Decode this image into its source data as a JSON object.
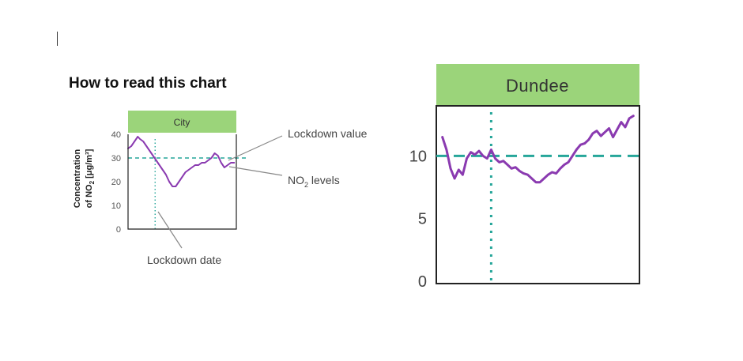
{
  "document": {
    "guide_title": "How to read this chart"
  },
  "guide": {
    "panel_title": "City",
    "y_axis_label_line1": "Concentration",
    "y_axis_label_line2_prefix": "of NO",
    "y_axis_label_line2_sub": "2",
    "y_axis_label_line2_suffix": " [μg/m³]",
    "callouts": {
      "lockdown_value": "Lockdown value",
      "no2_levels_prefix": "NO",
      "no2_levels_sub": "2",
      "no2_levels_suffix": " levels",
      "lockdown_date": "Lockdown date"
    }
  },
  "colors": {
    "header_green": "#9bd47a",
    "series_purple": "#8a3ab0",
    "reference_teal": "#26a69a",
    "axis": "#222222",
    "callout_line": "#888888"
  },
  "chart_data": [
    {
      "type": "line",
      "title": "City",
      "ylabel": "Concentration of NO2 [μg/m³]",
      "ylim": [
        0,
        40
      ],
      "yticks": [
        0,
        10,
        20,
        30,
        40
      ],
      "xlim": [
        0,
        100
      ],
      "grid": false,
      "lockdown_value": 30,
      "lockdown_x": 25,
      "series": [
        {
          "name": "NO2 levels",
          "x": [
            0,
            3,
            6,
            9,
            11,
            14,
            17,
            20,
            23,
            26,
            29,
            32,
            35,
            38,
            41,
            44,
            47,
            50,
            53,
            56,
            59,
            62,
            65,
            68,
            71,
            74,
            77,
            80,
            83,
            86,
            89,
            92,
            95,
            98
          ],
          "y": [
            34,
            35,
            37,
            39,
            38,
            37,
            35,
            33,
            31,
            29,
            27,
            25,
            23,
            20,
            18,
            18,
            20,
            22,
            24,
            25,
            26,
            27,
            27,
            28,
            28,
            29,
            30,
            32,
            31,
            28,
            26,
            27,
            28,
            28
          ]
        }
      ]
    },
    {
      "type": "line",
      "title": "Dundee",
      "ylim": [
        0,
        14
      ],
      "yticks": [
        0,
        5,
        10
      ],
      "xlim": [
        0,
        100
      ],
      "grid": false,
      "lockdown_value": 10,
      "lockdown_x": 27,
      "series": [
        {
          "name": "",
          "x": [
            3,
            5,
            7,
            9,
            11,
            13,
            15,
            17,
            19,
            21,
            23,
            25,
            27,
            29,
            31,
            33,
            35,
            37,
            39,
            41,
            43,
            45,
            47,
            49,
            51,
            53,
            55,
            57,
            59,
            61,
            63,
            65,
            67,
            69,
            71,
            73,
            75,
            77,
            79,
            81,
            83,
            85,
            87,
            89,
            91,
            93,
            95,
            97
          ],
          "y": [
            11.5,
            10.5,
            9.0,
            8.2,
            8.9,
            8.5,
            9.8,
            10.3,
            10.1,
            10.4,
            10.0,
            9.8,
            10.5,
            9.8,
            9.5,
            9.6,
            9.3,
            9.0,
            9.1,
            8.8,
            8.6,
            8.5,
            8.2,
            7.9,
            7.9,
            8.2,
            8.5,
            8.7,
            8.6,
            9.0,
            9.3,
            9.5,
            10.0,
            10.5,
            10.9,
            11.0,
            11.3,
            11.8,
            12.0,
            11.6,
            11.9,
            12.2,
            11.5,
            12.1,
            12.7,
            12.3,
            13.0,
            13.2
          ]
        }
      ]
    }
  ]
}
